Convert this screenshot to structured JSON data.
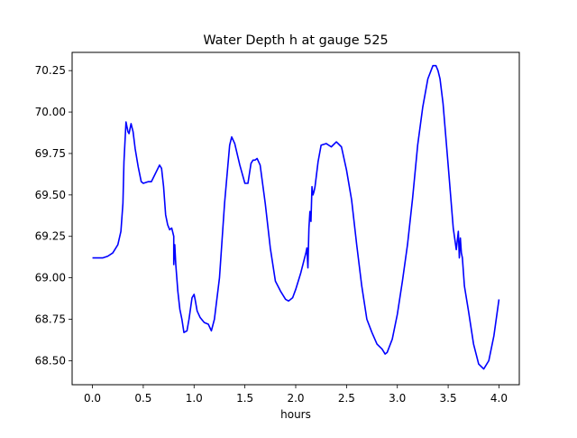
{
  "chart_data": {
    "type": "line",
    "title": "Water Depth h at gauge 525",
    "xlabel": "hours",
    "ylabel": "",
    "xlim": [
      -0.2,
      4.2
    ],
    "ylim": [
      68.355,
      70.36
    ],
    "xticks": [
      "0.0",
      "0.5",
      "1.0",
      "1.5",
      "2.0",
      "2.5",
      "3.0",
      "3.5",
      "4.0"
    ],
    "yticks": [
      "68.50",
      "68.75",
      "69.00",
      "69.25",
      "69.50",
      "69.75",
      "70.00",
      "70.25"
    ],
    "grid": false,
    "legend": "none",
    "series": [
      {
        "color": "#0000ff",
        "x": [
          0.0,
          0.1,
          0.15,
          0.2,
          0.25,
          0.28,
          0.3,
          0.31,
          0.32,
          0.33,
          0.35,
          0.36,
          0.38,
          0.4,
          0.42,
          0.45,
          0.48,
          0.5,
          0.55,
          0.58,
          0.62,
          0.66,
          0.68,
          0.7,
          0.72,
          0.74,
          0.76,
          0.78,
          0.8,
          0.8,
          0.81,
          0.82,
          0.84,
          0.86,
          0.88,
          0.9,
          0.93,
          0.95,
          0.98,
          1.0,
          1.01,
          1.03,
          1.06,
          1.1,
          1.14,
          1.17,
          1.2,
          1.25,
          1.3,
          1.35,
          1.37,
          1.4,
          1.45,
          1.5,
          1.53,
          1.56,
          1.58,
          1.6,
          1.62,
          1.65,
          1.7,
          1.75,
          1.8,
          1.85,
          1.9,
          1.93,
          1.97,
          2.0,
          2.05,
          2.1,
          2.11,
          2.12,
          2.13,
          2.14,
          2.15,
          2.16,
          2.17,
          2.18,
          2.19,
          2.2,
          2.22,
          2.25,
          2.3,
          2.35,
          2.4,
          2.45,
          2.5,
          2.55,
          2.6,
          2.65,
          2.7,
          2.75,
          2.8,
          2.85,
          2.88,
          2.9,
          2.95,
          3.0,
          3.05,
          3.1,
          3.15,
          3.2,
          3.25,
          3.3,
          3.35,
          3.38,
          3.4,
          3.42,
          3.45,
          3.5,
          3.55,
          3.58,
          3.6,
          3.61,
          3.62,
          3.63,
          3.64,
          3.66,
          3.7,
          3.75,
          3.8,
          3.85,
          3.9,
          3.95,
          4.0
        ],
        "y": [
          69.12,
          69.12,
          69.13,
          69.15,
          69.2,
          69.28,
          69.45,
          69.7,
          69.82,
          69.94,
          69.88,
          69.87,
          69.93,
          69.88,
          69.78,
          69.67,
          69.58,
          69.57,
          69.58,
          69.58,
          69.63,
          69.68,
          69.66,
          69.55,
          69.38,
          69.32,
          69.29,
          69.3,
          69.25,
          69.08,
          69.2,
          69.08,
          68.92,
          68.81,
          68.75,
          68.67,
          68.68,
          68.75,
          68.88,
          68.9,
          68.87,
          68.8,
          68.76,
          68.73,
          68.72,
          68.68,
          68.75,
          69.0,
          69.45,
          69.8,
          69.85,
          69.81,
          69.68,
          69.57,
          69.57,
          69.69,
          69.71,
          69.71,
          69.72,
          69.68,
          69.45,
          69.18,
          68.98,
          68.92,
          68.87,
          68.86,
          68.88,
          68.93,
          69.03,
          69.15,
          69.18,
          69.06,
          69.3,
          69.4,
          69.34,
          69.55,
          69.5,
          69.52,
          69.55,
          69.6,
          69.7,
          69.8,
          69.81,
          69.79,
          69.82,
          69.79,
          69.65,
          69.47,
          69.2,
          68.95,
          68.75,
          68.67,
          68.6,
          68.57,
          68.54,
          68.55,
          68.63,
          68.78,
          68.98,
          69.2,
          69.48,
          69.8,
          70.03,
          70.2,
          70.28,
          70.28,
          70.25,
          70.2,
          70.05,
          69.68,
          69.3,
          69.17,
          69.28,
          69.12,
          69.24,
          69.15,
          69.12,
          68.95,
          68.8,
          68.6,
          68.48,
          68.45,
          68.5,
          68.65,
          68.87
        ]
      }
    ]
  }
}
